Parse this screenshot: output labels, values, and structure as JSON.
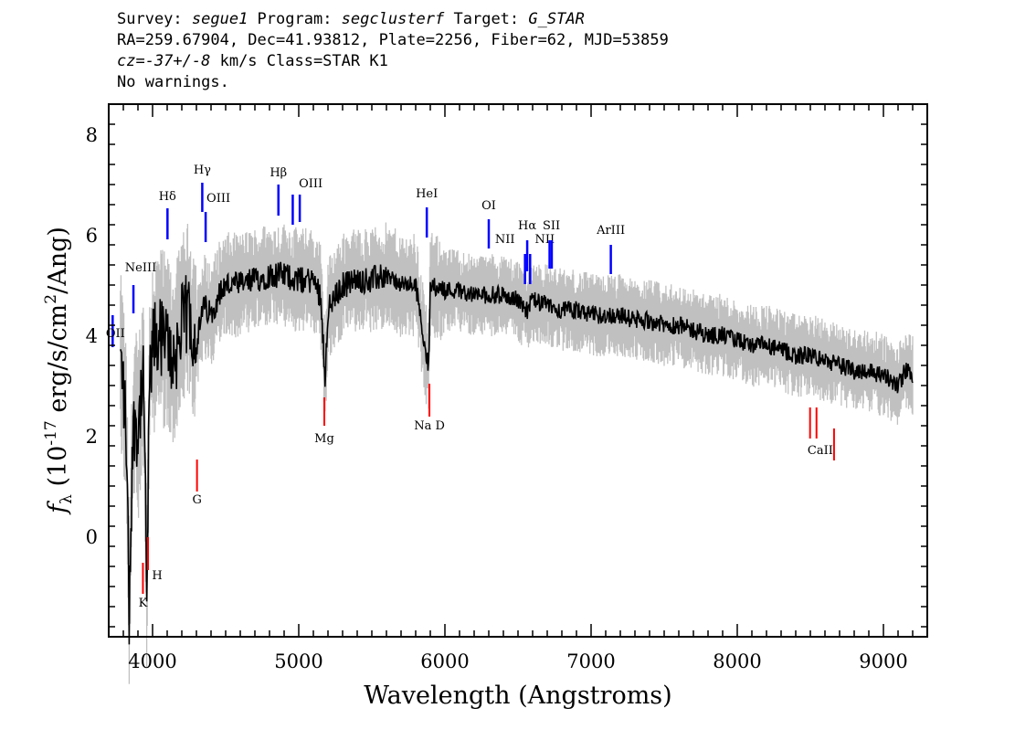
{
  "header": {
    "line1": {
      "survey_label": "Survey: ",
      "survey": "segue1",
      "program_label": " Program: ",
      "program": "segclusterf",
      "target_label": " Target: ",
      "target": "G_STAR"
    },
    "line2": "RA=259.67904, Dec=41.93812, Plate=2256, Fiber=62, MJD=53859",
    "line3": {
      "cz": "cz=-37+/-8",
      "rest": " km/s Class=STAR K1"
    },
    "line4": "No warnings."
  },
  "chart_data": {
    "type": "line",
    "xlabel": "Wavelength (Angstroms)",
    "ylabel": "f_λ (10^-17 erg/s/cm^2/Ang)",
    "xlim": [
      3700,
      9300
    ],
    "ylim": [
      -2.0,
      8.6
    ],
    "x_ticks": [
      4000,
      5000,
      6000,
      7000,
      8000,
      9000
    ],
    "y_ticks": [
      0,
      2,
      4,
      6,
      8
    ],
    "colors": {
      "flux": "#000000",
      "error_band": "#c0c0c0",
      "emission": "#0000ff",
      "absorption": "#ff0000"
    },
    "series": [
      {
        "x": [
          3780,
          3800,
          3820,
          3840,
          3860,
          3880,
          3900,
          3920,
          3940,
          3960,
          3980,
          4000,
          4050,
          4100,
          4150,
          4200,
          4250,
          4300,
          4350,
          4400,
          4450,
          4500,
          4600,
          4700,
          4800,
          4900,
          5000,
          5100,
          5150,
          5180,
          5200,
          5300,
          5400,
          5500,
          5600,
          5700,
          5800,
          5890,
          5900,
          6000,
          6100,
          6200,
          6300,
          6400,
          6500,
          6563,
          6600,
          6700,
          6800,
          6900,
          7000,
          7100,
          7200,
          7300,
          7400,
          7500,
          7600,
          7700,
          7800,
          7900,
          8000,
          8100,
          8200,
          8300,
          8400,
          8500,
          8600,
          8700,
          8800,
          8900,
          9000,
          9100,
          9150,
          9200
        ],
        "values": [
          3.5,
          3.0,
          2.0,
          -1.5,
          1.5,
          2.5,
          2.0,
          2.8,
          3.0,
          -1.2,
          3.0,
          3.8,
          4.0,
          3.8,
          3.5,
          4.2,
          4.5,
          3.8,
          4.6,
          4.4,
          4.8,
          5.0,
          5.0,
          5.1,
          5.2,
          5.2,
          5.1,
          5.1,
          4.8,
          3.2,
          4.5,
          5.0,
          5.1,
          5.1,
          5.2,
          5.0,
          5.0,
          3.3,
          5.0,
          4.9,
          4.9,
          4.8,
          4.8,
          4.8,
          4.7,
          4.5,
          4.7,
          4.6,
          4.5,
          4.5,
          4.4,
          4.4,
          4.4,
          4.3,
          4.3,
          4.2,
          4.2,
          4.1,
          4.0,
          4.0,
          3.9,
          3.8,
          3.8,
          3.7,
          3.6,
          3.6,
          3.5,
          3.4,
          3.3,
          3.3,
          3.2,
          3.0,
          3.3,
          3.2
        ]
      }
    ],
    "emission_lines": [
      {
        "label": "OII",
        "x": 3727
      },
      {
        "label": "NeIII",
        "x": 3869
      },
      {
        "label": "Hδ",
        "x": 4102
      },
      {
        "label": "Hγ",
        "x": 4340
      },
      {
        "label": "OIII",
        "x": 4363
      },
      {
        "label": "Hβ",
        "x": 4861
      },
      {
        "label": "OIII",
        "x": 4959
      },
      {
        "label": "OIII",
        "x": 5007
      },
      {
        "label": "HeI",
        "x": 5876
      },
      {
        "label": "OI",
        "x": 6300
      },
      {
        "label": "NII",
        "x": 6548
      },
      {
        "label": "Hα",
        "x": 6563
      },
      {
        "label": "NII",
        "x": 6583
      },
      {
        "label": "SII",
        "x": 6716
      },
      {
        "label": "SII",
        "x": 6731
      },
      {
        "label": "ArIII",
        "x": 7135
      }
    ],
    "absorption_lines": [
      {
        "label": "K",
        "x": 3934
      },
      {
        "label": "H",
        "x": 3969
      },
      {
        "label": "G",
        "x": 4304
      },
      {
        "label": "Mg",
        "x": 5175
      },
      {
        "label": "Na  D",
        "x": 5894
      },
      {
        "label": "CaII",
        "x": 8498
      },
      {
        "label": "CaII",
        "x": 8542
      },
      {
        "label": "CaII",
        "x": 8662
      }
    ]
  }
}
